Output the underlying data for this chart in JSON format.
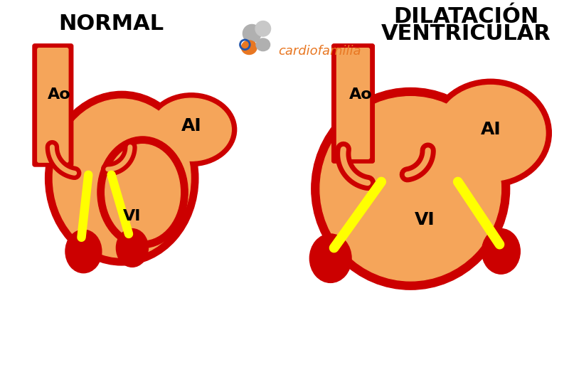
{
  "title_left": "NORMAL",
  "title_right_1": "DILATACIÓN",
  "title_right_2": "VENTRICULAR",
  "bg_color": "#ffffff",
  "orange": "#F5A55A",
  "red": "#CC0000",
  "dark_red": "#8B0000",
  "yellow": "#FFFF00",
  "black": "#000000",
  "brand_color": "#E87722",
  "brand_text": "cardiofamilia",
  "label_Ao": "Ao",
  "label_AI": "AI",
  "label_VI": "VI"
}
